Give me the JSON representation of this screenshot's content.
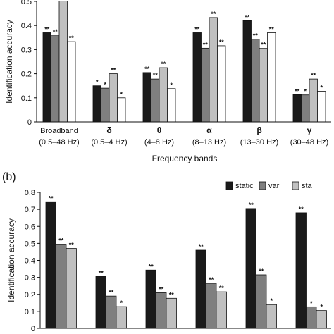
{
  "chart_data": [
    {
      "type": "bar",
      "panel_label": "",
      "ylabel": "Identification accuracy",
      "xlabel": "Frequency bands",
      "ylim": [
        0,
        0.5
      ],
      "yticks": [
        "0",
        "0.1",
        "0.2",
        "0.3",
        "0.4",
        "0.5"
      ],
      "categories": [
        {
          "name": "Broadband",
          "range": "(0.5–48 Hz)"
        },
        {
          "name": "δ",
          "range": "(0.5–4 Hz)"
        },
        {
          "name": "θ",
          "range": "(4–8 Hz)"
        },
        {
          "name": "α",
          "range": "(8–13 Hz)"
        },
        {
          "name": "β",
          "range": "(13–30 Hz)"
        },
        {
          "name": "γ",
          "range": "(30–48 Hz)"
        }
      ],
      "series": [
        {
          "color": "#1a1a1a",
          "values": [
            0.37,
            0.15,
            0.205,
            0.37,
            0.42,
            0.113
          ],
          "stars": [
            "**",
            "*",
            "**",
            "**",
            "**",
            "**"
          ]
        },
        {
          "color": "#7f7f7f",
          "values": [
            0.36,
            0.14,
            0.178,
            0.306,
            0.343,
            0.112
          ],
          "stars": [
            "**",
            "*",
            "**",
            "**",
            "**",
            "*"
          ]
        },
        {
          "color": "#c0c0c0",
          "values": [
            0.52,
            0.2,
            0.225,
            0.433,
            0.305,
            0.178
          ],
          "stars": [
            "",
            "**",
            "**",
            "**",
            "**",
            "**"
          ]
        },
        {
          "color": "#ffffff",
          "values": [
            0.333,
            0.1,
            0.138,
            0.316,
            0.37,
            0.127
          ],
          "stars": [
            "**",
            "*",
            "*",
            "**",
            "**",
            "*"
          ]
        }
      ]
    },
    {
      "type": "bar",
      "panel_label": "(b)",
      "ylabel": "Identification accuracy",
      "xlabel": "",
      "ylim": [
        0,
        0.8
      ],
      "yticks": [
        "0",
        "0.1",
        "0.2",
        "0.3",
        "0.4",
        "0.5",
        "0.6",
        "0.7",
        "0.8"
      ],
      "legend": [
        "static",
        "var",
        "sta"
      ],
      "series": [
        {
          "name": "static",
          "color": "#1a1a1a",
          "values": [
            0.745,
            0.305,
            0.343,
            0.46,
            0.705,
            0.68
          ],
          "stars": [
            "**",
            "**",
            "**",
            "**",
            "**",
            "**"
          ]
        },
        {
          "name": "var",
          "color": "#7f7f7f",
          "values": [
            0.495,
            0.19,
            0.21,
            0.265,
            0.315,
            0.127
          ],
          "stars": [
            "**",
            "**",
            "**",
            "**",
            "**",
            "*"
          ]
        },
        {
          "name": "sta",
          "color": "#c0c0c0",
          "values": [
            0.47,
            0.128,
            0.177,
            0.215,
            0.14,
            0.105
          ],
          "stars": [
            "**",
            "*",
            "**",
            "**",
            "*",
            "*"
          ]
        }
      ]
    }
  ]
}
